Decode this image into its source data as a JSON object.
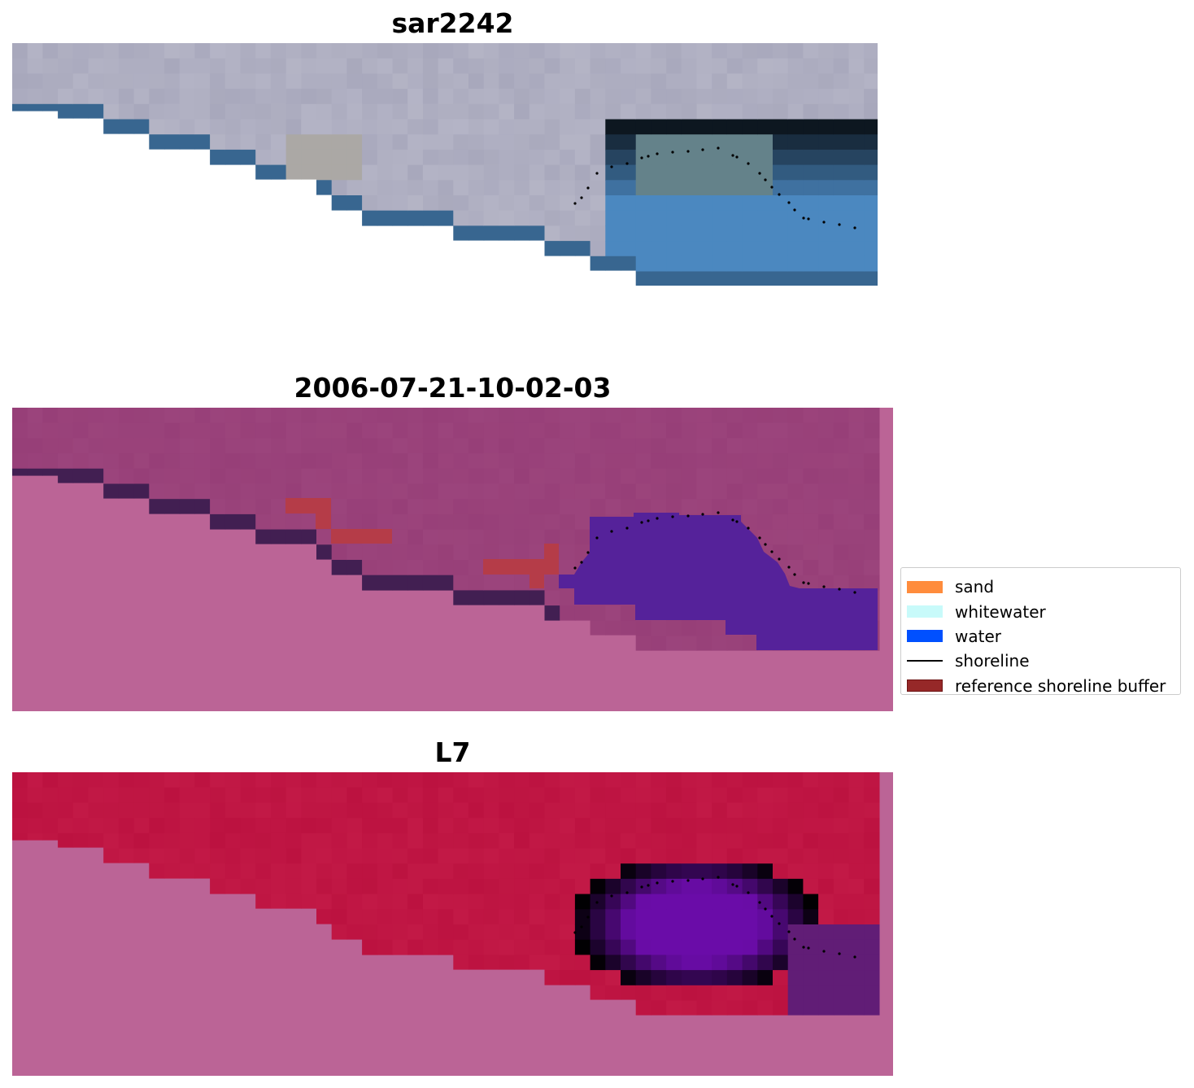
{
  "panels": [
    {
      "id": "rgb",
      "title": "sar2242"
    },
    {
      "id": "classified",
      "title": "2006-07-21-10-02-03"
    },
    {
      "id": "index",
      "title": "L7"
    }
  ],
  "legend": {
    "items": [
      {
        "label": "sand",
        "kind": "patch",
        "color": "#ff8c3c"
      },
      {
        "label": "whitewater",
        "kind": "patch",
        "color": "#c8fafa"
      },
      {
        "label": "water",
        "kind": "patch",
        "color": "#0050ff"
      },
      {
        "label": "shoreline",
        "kind": "line",
        "color": "#000000"
      },
      {
        "label": "reference shoreline buffer",
        "kind": "patch",
        "color": "#962828",
        "edge": "#6e1414"
      }
    ]
  },
  "colors": {
    "nodata": "#bb6496",
    "rgb_land": "#a8a8bc",
    "rgb_water": "#4b88c0",
    "class_land": "#973f78",
    "class_water": "#55229a",
    "index_land": "#bc1240",
    "index_water": "#6a0ca8",
    "shoreline_dots": "#000000"
  }
}
